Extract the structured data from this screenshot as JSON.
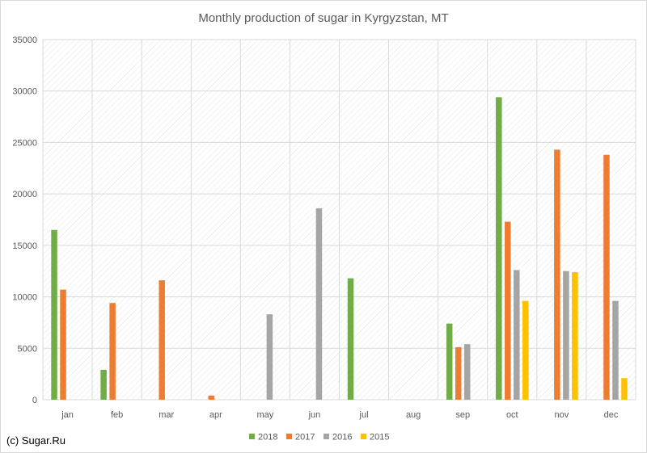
{
  "chart_data": {
    "type": "bar",
    "title": "Monthly production of sugar in Kyrgyzstan, MT",
    "xlabel": "",
    "ylabel": "",
    "categories": [
      "jan",
      "feb",
      "mar",
      "apr",
      "may",
      "jun",
      "jul",
      "aug",
      "sep",
      "oct",
      "nov",
      "dec"
    ],
    "ylim": [
      0,
      35000
    ],
    "yticks": [
      0,
      5000,
      10000,
      15000,
      20000,
      25000,
      30000,
      35000
    ],
    "grid": true,
    "legend_position": "bottom",
    "series": [
      {
        "name": "2018",
        "color": "#70ad47",
        "values": [
          16500,
          2900,
          null,
          null,
          null,
          null,
          11800,
          null,
          7400,
          29400,
          null,
          null
        ]
      },
      {
        "name": "2017",
        "color": "#ed7d31",
        "values": [
          10700,
          9400,
          11600,
          400,
          null,
          null,
          null,
          null,
          5100,
          17300,
          24300,
          23800
        ]
      },
      {
        "name": "2016",
        "color": "#a5a5a5",
        "values": [
          null,
          null,
          null,
          null,
          8300,
          18600,
          null,
          null,
          5400,
          12600,
          12500,
          9600
        ]
      },
      {
        "name": "2015",
        "color": "#ffc000",
        "values": [
          null,
          null,
          null,
          null,
          null,
          null,
          null,
          null,
          null,
          9600,
          12400,
          2100
        ]
      }
    ]
  },
  "footer": {
    "credit": "(c) Sugar.Ru"
  }
}
